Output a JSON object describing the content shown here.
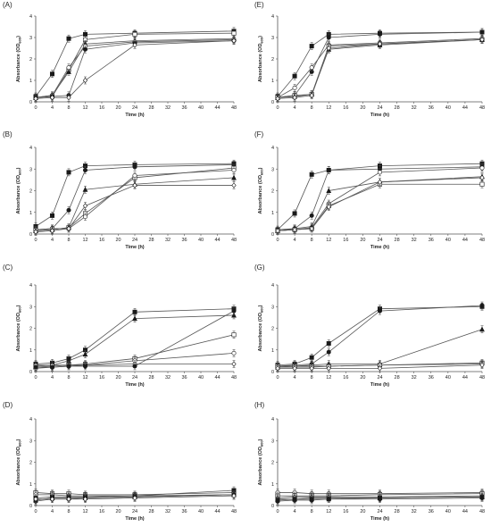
{
  "chart_data": [
    {
      "panel": "(A)",
      "type": "line",
      "xlabel": "Time (h)",
      "ylabel": "Absorbance (OD600)",
      "x_ticks": [
        0,
        4,
        8,
        12,
        16,
        20,
        24,
        28,
        32,
        36,
        40,
        44,
        48
      ],
      "y_ticks": [
        0,
        1,
        2,
        3,
        4
      ],
      "xlim": [
        0,
        48
      ],
      "ylim": [
        0,
        4
      ],
      "x": [
        0,
        4,
        8,
        12,
        24,
        48
      ],
      "series": [
        {
          "marker": "filled-square",
          "values": [
            0.25,
            1.3,
            2.95,
            3.15,
            3.2,
            3.3
          ]
        },
        {
          "marker": "open-square",
          "values": [
            0.2,
            0.25,
            1.5,
            2.9,
            3.15,
            3.2
          ]
        },
        {
          "marker": "filled-triangle",
          "values": [
            0.2,
            0.3,
            1.4,
            2.7,
            2.85,
            2.95
          ]
        },
        {
          "marker": "open-circle",
          "values": [
            0.2,
            0.3,
            1.6,
            2.6,
            2.8,
            2.9
          ]
        },
        {
          "marker": "filled-circle",
          "values": [
            0.2,
            0.25,
            0.3,
            2.45,
            2.75,
            2.85
          ]
        },
        {
          "marker": "open-diamond",
          "values": [
            0.15,
            0.2,
            0.2,
            1.0,
            2.65,
            2.85
          ]
        }
      ]
    },
    {
      "panel": "(B)",
      "type": "line",
      "xlabel": "Time (h)",
      "ylabel": "Absorbance (OD600)",
      "x_ticks": [
        0,
        4,
        8,
        12,
        16,
        20,
        24,
        28,
        32,
        36,
        40,
        44,
        48
      ],
      "y_ticks": [
        0,
        1,
        2,
        3,
        4
      ],
      "xlim": [
        0,
        48
      ],
      "ylim": [
        0,
        4
      ],
      "x": [
        0,
        4,
        8,
        12,
        24,
        48
      ],
      "series": [
        {
          "marker": "filled-square",
          "values": [
            0.35,
            0.85,
            2.85,
            3.15,
            3.2,
            3.25
          ]
        },
        {
          "marker": "filled-circle",
          "values": [
            0.2,
            0.25,
            1.1,
            2.95,
            3.1,
            3.2
          ]
        },
        {
          "marker": "open-square",
          "values": [
            0.15,
            0.2,
            0.3,
            0.95,
            2.6,
            3.05
          ]
        },
        {
          "marker": "open-circle",
          "values": [
            0.2,
            0.25,
            0.25,
            0.8,
            2.7,
            2.95
          ]
        },
        {
          "marker": "filled-triangle",
          "values": [
            0.15,
            0.2,
            0.3,
            2.05,
            2.3,
            2.6
          ]
        },
        {
          "marker": "open-diamond",
          "values": [
            0.1,
            0.15,
            0.25,
            1.3,
            2.25,
            2.25
          ]
        }
      ]
    },
    {
      "panel": "(C)",
      "type": "line",
      "xlabel": "Time (h)",
      "ylabel": "Absorbance (OD600)",
      "x_ticks": [
        0,
        4,
        8,
        12,
        16,
        20,
        24,
        28,
        32,
        36,
        40,
        44,
        48
      ],
      "y_ticks": [
        0,
        1,
        2,
        3,
        4
      ],
      "xlim": [
        0,
        48
      ],
      "ylim": [
        0,
        4
      ],
      "x": [
        0,
        4,
        8,
        12,
        24,
        48
      ],
      "series": [
        {
          "marker": "filled-square",
          "values": [
            0.35,
            0.4,
            0.6,
            1.0,
            2.75,
            2.9
          ]
        },
        {
          "marker": "filled-triangle",
          "values": [
            0.25,
            0.3,
            0.5,
            0.8,
            2.45,
            2.6
          ]
        },
        {
          "marker": "open-square",
          "values": [
            0.2,
            0.25,
            0.3,
            0.35,
            0.6,
            1.7
          ]
        },
        {
          "marker": "open-circle",
          "values": [
            0.15,
            0.2,
            0.25,
            0.3,
            0.5,
            0.85
          ]
        },
        {
          "marker": "open-diamond",
          "values": [
            0.3,
            0.3,
            0.3,
            0.3,
            0.35,
            0.35
          ]
        },
        {
          "marker": "filled-circle",
          "values": [
            0.2,
            0.2,
            0.25,
            0.25,
            0.25,
            2.8
          ]
        }
      ]
    },
    {
      "panel": "(D)",
      "type": "line",
      "xlabel": "Time (h)",
      "ylabel": "Absorbance (OD600)",
      "x_ticks": [
        0,
        4,
        8,
        12,
        16,
        20,
        24,
        28,
        32,
        36,
        40,
        44,
        48
      ],
      "y_ticks": [
        0,
        1,
        2,
        3,
        4
      ],
      "xlim": [
        0,
        48
      ],
      "ylim": [
        0,
        4
      ],
      "x": [
        0,
        4,
        8,
        12,
        24,
        48
      ],
      "series": [
        {
          "marker": "open-square",
          "values": [
            0.6,
            0.55,
            0.55,
            0.5,
            0.5,
            0.6
          ]
        },
        {
          "marker": "open-circle",
          "values": [
            0.5,
            0.5,
            0.45,
            0.45,
            0.45,
            0.5
          ]
        },
        {
          "marker": "filled-square",
          "values": [
            0.35,
            0.4,
            0.4,
            0.4,
            0.45,
            0.7
          ]
        },
        {
          "marker": "filled-triangle",
          "values": [
            0.25,
            0.35,
            0.35,
            0.35,
            0.4,
            0.5
          ]
        },
        {
          "marker": "filled-circle",
          "values": [
            0.2,
            0.3,
            0.3,
            0.35,
            0.4,
            0.5
          ]
        },
        {
          "marker": "open-diamond",
          "values": [
            0.3,
            0.3,
            0.3,
            0.3,
            0.35,
            0.45
          ]
        }
      ]
    },
    {
      "panel": "(E)",
      "type": "line",
      "xlabel": "Time (h)",
      "ylabel": "Absorbance (OD600)",
      "x_ticks": [
        0,
        4,
        8,
        12,
        16,
        20,
        24,
        28,
        32,
        36,
        40,
        44,
        48
      ],
      "y_ticks": [
        0,
        1,
        2,
        3,
        4
      ],
      "xlim": [
        0,
        48
      ],
      "ylim": [
        0,
        4
      ],
      "x": [
        0,
        4,
        8,
        12,
        24,
        48
      ],
      "series": [
        {
          "marker": "filled-square",
          "values": [
            0.25,
            1.2,
            2.6,
            3.15,
            3.2,
            3.25
          ]
        },
        {
          "marker": "filled-circle",
          "values": [
            0.2,
            0.3,
            1.4,
            3.0,
            3.15,
            3.25
          ]
        },
        {
          "marker": "open-circle",
          "values": [
            0.2,
            0.65,
            1.6,
            2.65,
            2.75,
            2.95
          ]
        },
        {
          "marker": "open-square",
          "values": [
            0.2,
            0.3,
            0.35,
            2.6,
            2.7,
            2.9
          ]
        },
        {
          "marker": "filled-triangle",
          "values": [
            0.2,
            0.25,
            0.35,
            2.45,
            2.65,
            2.9
          ]
        },
        {
          "marker": "open-diamond",
          "values": [
            0.15,
            0.2,
            0.3,
            2.5,
            2.7,
            2.9
          ]
        }
      ]
    },
    {
      "panel": "(F)",
      "type": "line",
      "xlabel": "Time (h)",
      "ylabel": "Absorbance (OD600)",
      "x_ticks": [
        0,
        4,
        8,
        12,
        16,
        20,
        24,
        28,
        32,
        36,
        40,
        44,
        48
      ],
      "y_ticks": [
        0,
        1,
        2,
        3,
        4
      ],
      "xlim": [
        0,
        48
      ],
      "ylim": [
        0,
        4
      ],
      "x": [
        0,
        4,
        8,
        12,
        24,
        48
      ],
      "series": [
        {
          "marker": "filled-square",
          "values": [
            0.2,
            0.95,
            2.75,
            2.95,
            3.15,
            3.25
          ]
        },
        {
          "marker": "filled-circle",
          "values": [
            0.2,
            0.25,
            0.85,
            2.95,
            3.0,
            3.1
          ]
        },
        {
          "marker": "open-circle",
          "values": [
            0.15,
            0.2,
            0.3,
            1.4,
            2.85,
            3.05
          ]
        },
        {
          "marker": "filled-triangle",
          "values": [
            0.15,
            0.25,
            0.35,
            2.0,
            2.4,
            2.65
          ]
        },
        {
          "marker": "open-square",
          "values": [
            0.15,
            0.2,
            0.25,
            1.3,
            2.3,
            2.3
          ]
        },
        {
          "marker": "open-diamond",
          "values": [
            0.15,
            0.2,
            0.25,
            1.25,
            2.4,
            2.6
          ]
        }
      ]
    },
    {
      "panel": "(G)",
      "type": "line",
      "xlabel": "Time (h)",
      "ylabel": "Absorbance (OD600)",
      "x_ticks": [
        0,
        4,
        8,
        12,
        16,
        20,
        24,
        28,
        32,
        36,
        40,
        44,
        48
      ],
      "y_ticks": [
        0,
        1,
        2,
        3,
        4
      ],
      "xlim": [
        0,
        48
      ],
      "ylim": [
        0,
        4
      ],
      "x": [
        0,
        4,
        8,
        12,
        24,
        48
      ],
      "series": [
        {
          "marker": "filled-square",
          "values": [
            0.3,
            0.35,
            0.65,
            1.3,
            2.9,
            3.0
          ]
        },
        {
          "marker": "filled-circle",
          "values": [
            0.25,
            0.3,
            0.35,
            0.9,
            2.8,
            3.05
          ]
        },
        {
          "marker": "filled-triangle",
          "values": [
            0.2,
            0.25,
            0.3,
            0.35,
            0.35,
            1.95
          ]
        },
        {
          "marker": "open-square",
          "values": [
            0.25,
            0.25,
            0.25,
            0.25,
            0.3,
            0.4
          ]
        },
        {
          "marker": "open-circle",
          "values": [
            0.2,
            0.2,
            0.2,
            0.25,
            0.3,
            0.35
          ]
        },
        {
          "marker": "open-diamond",
          "values": [
            0.15,
            0.15,
            0.15,
            0.15,
            0.15,
            0.3
          ]
        }
      ]
    },
    {
      "panel": "(H)",
      "type": "line",
      "xlabel": "Time (h)",
      "ylabel": "Absorbance (OD600)",
      "x_ticks": [
        0,
        4,
        8,
        12,
        16,
        20,
        24,
        28,
        32,
        36,
        40,
        44,
        48
      ],
      "y_ticks": [
        0,
        1,
        2,
        3,
        4
      ],
      "xlim": [
        0,
        48
      ],
      "ylim": [
        0,
        4
      ],
      "x": [
        0,
        4,
        8,
        12,
        24,
        48
      ],
      "series": [
        {
          "marker": "open-circle",
          "values": [
            0.6,
            0.6,
            0.55,
            0.55,
            0.55,
            0.6
          ]
        },
        {
          "marker": "open-square",
          "values": [
            0.45,
            0.45,
            0.45,
            0.45,
            0.5,
            0.55
          ]
        },
        {
          "marker": "open-diamond",
          "values": [
            0.35,
            0.4,
            0.4,
            0.4,
            0.4,
            0.45
          ]
        },
        {
          "marker": "filled-triangle",
          "values": [
            0.3,
            0.3,
            0.35,
            0.35,
            0.35,
            0.4
          ]
        },
        {
          "marker": "filled-square",
          "values": [
            0.25,
            0.3,
            0.3,
            0.3,
            0.35,
            0.4
          ]
        },
        {
          "marker": "filled-circle",
          "values": [
            0.2,
            0.25,
            0.25,
            0.3,
            0.3,
            0.35
          ]
        }
      ]
    }
  ]
}
